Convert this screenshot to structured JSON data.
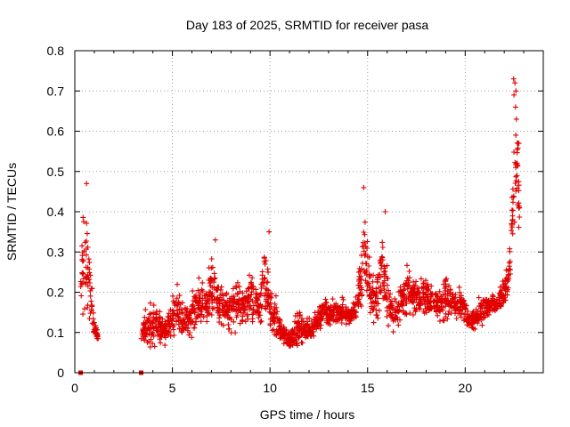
{
  "chart_data": {
    "type": "scatter",
    "title": "Day 183 of 2025, SRMTID for receiver pasa",
    "xlabel": "GPS time / hours",
    "ylabel": "SRMTID / TECUs",
    "xlim": [
      0,
      24
    ],
    "ylim": [
      0,
      0.8
    ],
    "xticks": [
      0,
      5,
      10,
      15,
      20
    ],
    "yticks": [
      0,
      0.1,
      0.2,
      0.3,
      0.4,
      0.5,
      0.6,
      0.7,
      0.8
    ],
    "xtick_labels": [
      "0",
      "5",
      "10",
      "15",
      "20"
    ],
    "ytick_labels": [
      "0",
      "0.1",
      "0.2",
      "0.3",
      "0.4",
      "0.5",
      "0.6",
      "0.7",
      "0.8"
    ],
    "grid": true,
    "marker": "+",
    "color": "#e00000",
    "zero_points": [
      [
        0.3,
        0
      ],
      [
        3.4,
        0
      ]
    ],
    "envelope_hours": [
      0.3,
      0.4,
      0.5,
      0.6,
      0.7,
      0.8,
      0.9,
      1.0,
      1.1,
      1.2,
      3.4,
      3.6,
      3.8,
      4.0,
      4.2,
      4.4,
      4.6,
      4.8,
      5.0,
      5.2,
      5.4,
      5.6,
      5.8,
      6.0,
      6.2,
      6.4,
      6.6,
      6.8,
      7.0,
      7.2,
      7.4,
      7.6,
      7.8,
      8.0,
      8.2,
      8.4,
      8.6,
      8.8,
      9.0,
      9.2,
      9.4,
      9.6,
      9.8,
      10.0,
      10.2,
      10.4,
      10.6,
      10.8,
      11.0,
      11.2,
      11.4,
      11.6,
      11.8,
      12.0,
      12.2,
      12.4,
      12.6,
      12.8,
      13.0,
      13.2,
      13.4,
      13.6,
      13.8,
      14.0,
      14.2,
      14.4,
      14.6,
      14.8,
      15.0,
      15.2,
      15.4,
      15.6,
      15.8,
      16.0,
      16.2,
      16.4,
      16.6,
      16.8,
      17.0,
      17.2,
      17.4,
      17.6,
      17.8,
      18.0,
      18.2,
      18.4,
      18.6,
      18.8,
      19.0,
      19.2,
      19.4,
      19.6,
      19.8,
      20.0,
      20.2,
      20.4,
      20.6,
      20.8,
      21.0,
      21.2,
      21.4,
      21.6,
      21.8,
      22.0,
      22.2,
      22.4,
      22.6,
      22.7,
      22.8
    ],
    "envelope_low": [
      0.14,
      0.1,
      0.1,
      0.08,
      0.12,
      0.12,
      0.1,
      0.08,
      0.08,
      0.08,
      0.06,
      0.06,
      0.05,
      0.04,
      0.05,
      0.05,
      0.05,
      0.06,
      0.06,
      0.06,
      0.06,
      0.07,
      0.07,
      0.07,
      0.09,
      0.09,
      0.09,
      0.09,
      0.1,
      0.1,
      0.1,
      0.08,
      0.08,
      0.08,
      0.08,
      0.09,
      0.1,
      0.1,
      0.1,
      0.1,
      0.09,
      0.09,
      0.08,
      0.07,
      0.06,
      0.06,
      0.06,
      0.05,
      0.05,
      0.05,
      0.06,
      0.06,
      0.07,
      0.07,
      0.08,
      0.08,
      0.09,
      0.09,
      0.1,
      0.1,
      0.1,
      0.1,
      0.11,
      0.11,
      0.12,
      0.12,
      0.13,
      0.13,
      0.12,
      0.11,
      0.1,
      0.1,
      0.1,
      0.09,
      0.09,
      0.09,
      0.1,
      0.11,
      0.12,
      0.13,
      0.13,
      0.13,
      0.13,
      0.12,
      0.12,
      0.12,
      0.12,
      0.11,
      0.11,
      0.11,
      0.1,
      0.1,
      0.1,
      0.1,
      0.1,
      0.1,
      0.1,
      0.11,
      0.11,
      0.12,
      0.13,
      0.14,
      0.15,
      0.16,
      0.18,
      0.25,
      0.3,
      0.32,
      0.32
    ],
    "envelope_high": [
      0.3,
      0.42,
      0.47,
      0.42,
      0.38,
      0.3,
      0.22,
      0.14,
      0.12,
      0.1,
      0.14,
      0.17,
      0.19,
      0.2,
      0.18,
      0.17,
      0.16,
      0.18,
      0.2,
      0.24,
      0.22,
      0.19,
      0.2,
      0.23,
      0.25,
      0.26,
      0.27,
      0.24,
      0.32,
      0.29,
      0.24,
      0.23,
      0.22,
      0.23,
      0.27,
      0.26,
      0.22,
      0.24,
      0.29,
      0.27,
      0.22,
      0.32,
      0.35,
      0.25,
      0.22,
      0.18,
      0.15,
      0.13,
      0.12,
      0.14,
      0.16,
      0.16,
      0.14,
      0.14,
      0.15,
      0.18,
      0.2,
      0.2,
      0.19,
      0.21,
      0.2,
      0.19,
      0.2,
      0.18,
      0.17,
      0.2,
      0.3,
      0.45,
      0.42,
      0.3,
      0.25,
      0.35,
      0.4,
      0.28,
      0.22,
      0.2,
      0.22,
      0.25,
      0.3,
      0.27,
      0.25,
      0.26,
      0.25,
      0.26,
      0.25,
      0.22,
      0.22,
      0.25,
      0.27,
      0.25,
      0.24,
      0.22,
      0.23,
      0.2,
      0.16,
      0.16,
      0.18,
      0.2,
      0.21,
      0.2,
      0.21,
      0.2,
      0.22,
      0.25,
      0.28,
      0.5,
      0.73,
      0.7,
      0.4
    ],
    "peak_points": [
      [
        22.48,
        0.73
      ],
      [
        22.55,
        0.72
      ],
      [
        22.6,
        0.7
      ],
      [
        22.5,
        0.69
      ],
      [
        22.58,
        0.66
      ],
      [
        22.62,
        0.63
      ],
      [
        22.7,
        0.57
      ],
      [
        22.75,
        0.57
      ],
      [
        22.65,
        0.49
      ],
      [
        0.6,
        0.47
      ],
      [
        14.8,
        0.46
      ],
      [
        15.9,
        0.4
      ],
      [
        9.95,
        0.35
      ],
      [
        7.2,
        0.33
      ]
    ]
  }
}
